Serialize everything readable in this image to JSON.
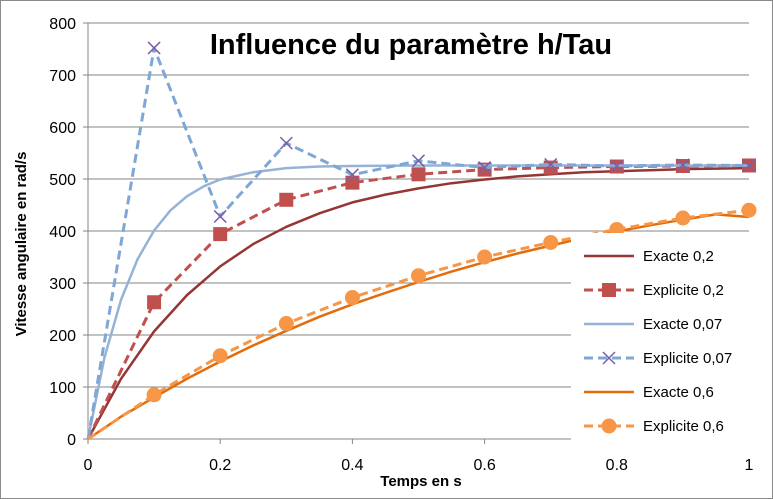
{
  "chart_data": {
    "type": "line",
    "title": "Influence du paramètre h/Tau",
    "xlabel": "Temps en s",
    "ylabel": "Vitesse angulaire en rad/s",
    "xlim": [
      0,
      1
    ],
    "ylim": [
      0,
      800
    ],
    "x_ticks": [
      "0",
      "0.2",
      "0.4",
      "0.6",
      "0.8",
      "1"
    ],
    "y_ticks": [
      "0",
      "100",
      "200",
      "300",
      "400",
      "500",
      "600",
      "700",
      "800"
    ],
    "grid": "horizontal",
    "legend_position": "right",
    "series": [
      {
        "name": "Exacte 0,2",
        "color": "#943634",
        "style": "solid",
        "marker": "none",
        "x": [
          0,
          0.05,
          0.1,
          0.15,
          0.2,
          0.25,
          0.3,
          0.35,
          0.4,
          0.45,
          0.5,
          0.55,
          0.6,
          0.65,
          0.7,
          0.75,
          0.8,
          0.85,
          0.9,
          0.95,
          1
        ],
        "y": [
          0,
          116,
          207,
          277,
          332,
          375,
          408,
          434,
          455,
          470,
          482,
          492,
          499,
          505,
          509,
          513,
          515,
          517,
          519,
          520,
          521
        ]
      },
      {
        "name": "Explicite 0,2",
        "color": "#c0504d",
        "style": "dashed",
        "marker": "square",
        "x": [
          0,
          0.1,
          0.2,
          0.3,
          0.4,
          0.5,
          0.6,
          0.7,
          0.8,
          0.9,
          1
        ],
        "y": [
          0,
          263,
          394,
          460,
          493,
          509,
          518,
          522,
          524,
          525,
          526
        ]
      },
      {
        "name": "Exacte 0,07",
        "color": "#95b3d7",
        "style": "solid",
        "marker": "none",
        "x": [
          0,
          0.025,
          0.05,
          0.075,
          0.1,
          0.125,
          0.15,
          0.175,
          0.2,
          0.25,
          0.3,
          0.35,
          0.4,
          0.5,
          0.6,
          0.7,
          0.8,
          0.9,
          1
        ],
        "y": [
          0,
          157,
          268,
          346,
          401,
          440,
          467,
          486,
          499,
          513,
          521,
          524,
          525,
          526,
          526,
          526,
          526,
          526,
          526
        ]
      },
      {
        "name": "Explicite 0,07",
        "color": "#7fa7d6",
        "style": "dashed",
        "marker": "x",
        "x": [
          0,
          0.1,
          0.2,
          0.3,
          0.4,
          0.5,
          0.6,
          0.7,
          0.8,
          0.9,
          1
        ],
        "y": [
          0,
          752,
          428,
          569,
          508,
          535,
          522,
          528,
          525,
          527,
          526
        ]
      },
      {
        "name": "Exacte 0,6",
        "color": "#e36c0a",
        "style": "solid",
        "marker": "none",
        "x": [
          0,
          0.05,
          0.1,
          0.15,
          0.2,
          0.25,
          0.3,
          0.35,
          0.4,
          0.45,
          0.5,
          0.55,
          0.6,
          0.65,
          0.7,
          0.75,
          0.8,
          0.85,
          0.9,
          0.95,
          1
        ],
        "y": [
          0,
          43,
          80,
          116,
          149,
          180,
          208,
          235,
          259,
          281,
          302,
          322,
          340,
          357,
          372,
          387,
          399,
          411,
          422,
          432,
          427
        ]
      },
      {
        "name": "Explicite 0,6",
        "color": "#f79646",
        "style": "dashed",
        "marker": "circle",
        "x": [
          0,
          0.1,
          0.2,
          0.3,
          0.4,
          0.5,
          0.6,
          0.7,
          0.8,
          0.9,
          1
        ],
        "y": [
          0,
          85,
          160,
          222,
          272,
          314,
          350,
          378,
          403,
          425,
          440
        ]
      }
    ]
  }
}
